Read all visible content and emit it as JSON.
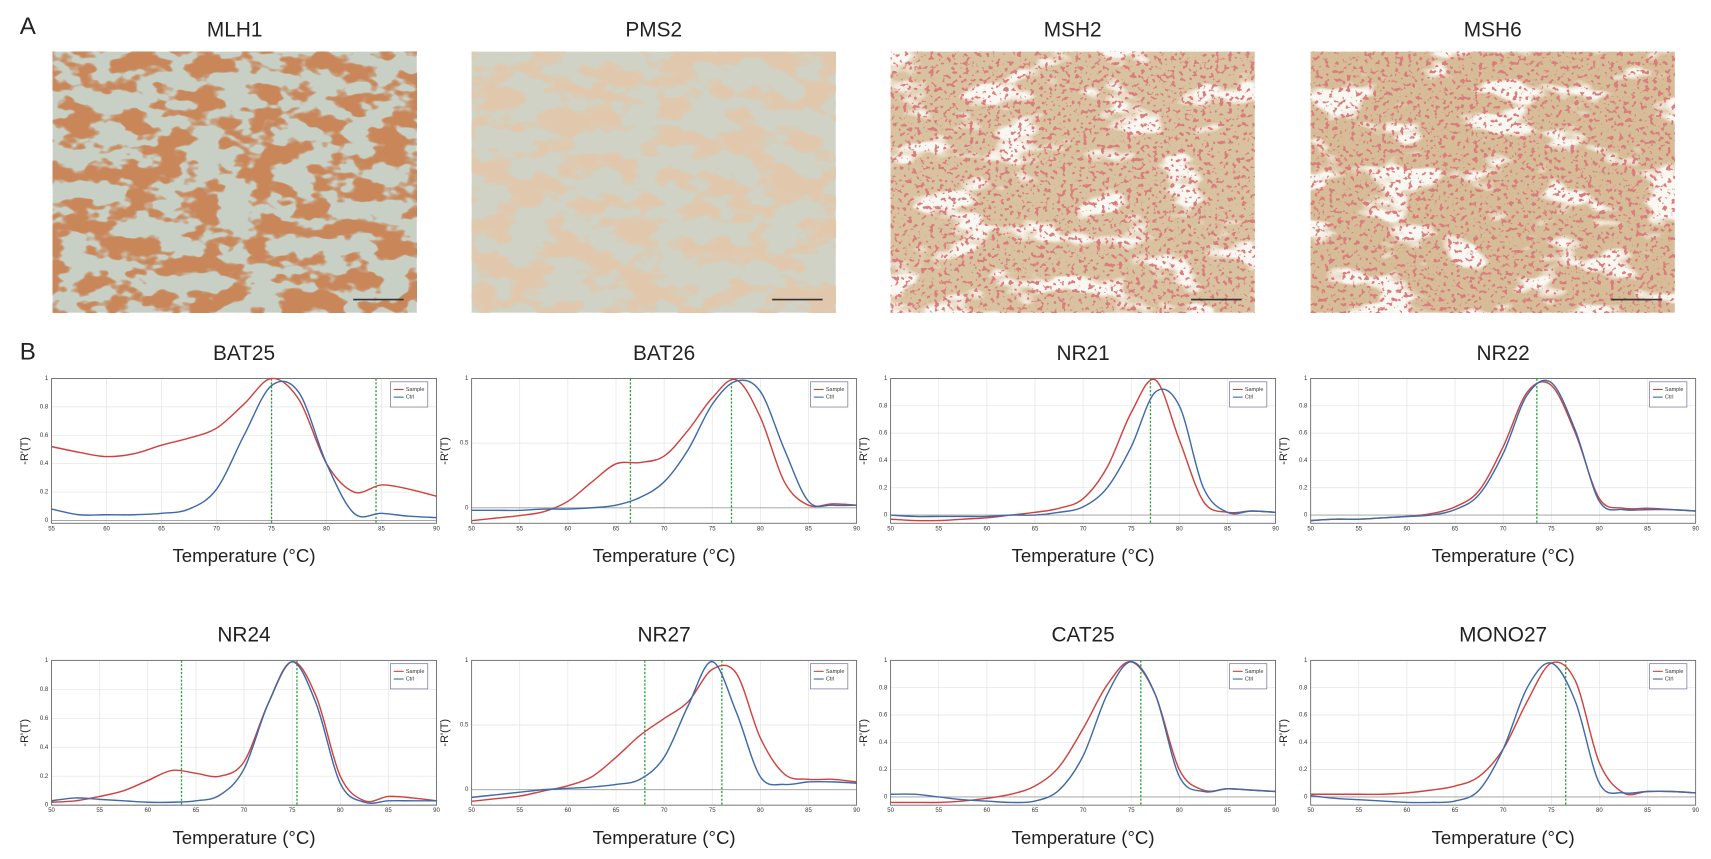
{
  "figure": {
    "panel_a": {
      "label": "A",
      "images": [
        {
          "title": "MLH1"
        },
        {
          "title": "PMS2"
        },
        {
          "title": "MSH2"
        },
        {
          "title": "MSH6"
        }
      ]
    },
    "panel_b": {
      "label": "B"
    }
  },
  "chart_data": [
    {
      "type": "line",
      "title": "BAT25",
      "x_label": "Temperature (°C)",
      "y_label": "-R'(T)",
      "grid": true,
      "legend": "upper right",
      "vline_color": "#2e9e3a",
      "x": [
        55,
        57.5,
        60,
        62.5,
        65,
        67.5,
        70,
        72.5,
        75,
        77.5,
        80,
        82.5,
        85,
        87.5,
        90
      ],
      "xlim": [
        55,
        90
      ],
      "xticks": [
        55,
        60,
        65,
        70,
        75,
        80,
        85,
        90
      ],
      "ylim": [
        -0.02,
        1
      ],
      "yticks": [
        0,
        0.2,
        0.4,
        0.6,
        0.8,
        1
      ],
      "vlines": [
        75,
        84.5
      ],
      "series": [
        {
          "name": "Sample",
          "color": "#d0413e",
          "values": [
            0.52,
            0.48,
            0.45,
            0.47,
            0.53,
            0.58,
            0.65,
            0.82,
            1.0,
            0.85,
            0.4,
            0.2,
            0.25,
            0.22,
            0.17
          ]
        },
        {
          "name": "Ctrl",
          "color": "#3d6aa8",
          "values": [
            0.08,
            0.04,
            0.04,
            0.04,
            0.05,
            0.08,
            0.22,
            0.6,
            0.95,
            0.9,
            0.4,
            0.05,
            0.05,
            0.03,
            0.02
          ]
        }
      ]
    },
    {
      "type": "line",
      "title": "BAT26",
      "x_label": "Temperature (°C)",
      "y_label": "-R'(T)",
      "grid": true,
      "legend": "upper right",
      "vline_color": "#2e9e3a",
      "x": [
        50,
        52.5,
        55,
        57.5,
        60,
        62.5,
        65,
        67.5,
        70,
        72.5,
        75,
        77.5,
        80,
        82.5,
        85,
        87.5,
        90
      ],
      "xlim": [
        50,
        90
      ],
      "xticks": [
        50,
        55,
        60,
        65,
        70,
        75,
        80,
        85,
        90
      ],
      "ylim": [
        -0.12,
        1
      ],
      "yticks": [
        0,
        0.5,
        1
      ],
      "vlines": [
        66.5,
        77
      ],
      "series": [
        {
          "name": "Sample",
          "color": "#d0413e",
          "values": [
            -0.1,
            -0.08,
            -0.06,
            -0.03,
            0.05,
            0.2,
            0.34,
            0.35,
            0.4,
            0.6,
            0.85,
            0.99,
            0.7,
            0.2,
            0.02,
            0.03,
            0.02
          ]
        },
        {
          "name": "Ctrl",
          "color": "#3d6aa8",
          "values": [
            -0.02,
            -0.02,
            -0.02,
            -0.01,
            -0.01,
            0.0,
            0.02,
            0.08,
            0.2,
            0.45,
            0.8,
            0.98,
            0.9,
            0.45,
            0.05,
            0.02,
            0.02
          ]
        }
      ]
    },
    {
      "type": "line",
      "title": "NR21",
      "x_label": "Temperature (°C)",
      "y_label": "-R'(T)",
      "grid": true,
      "legend": "upper right",
      "vline_color": "#2e9e3a",
      "x": [
        50,
        52.5,
        55,
        57.5,
        60,
        62.5,
        65,
        67.5,
        70,
        72.5,
        75,
        77.5,
        80,
        82.5,
        85,
        87.5,
        90
      ],
      "xlim": [
        50,
        90
      ],
      "xticks": [
        50,
        55,
        60,
        65,
        70,
        75,
        80,
        85,
        90
      ],
      "ylim": [
        -0.06,
        1
      ],
      "yticks": [
        0,
        0.2,
        0.4,
        0.6,
        0.8,
        1
      ],
      "vlines": [
        77
      ],
      "series": [
        {
          "name": "Sample",
          "color": "#d0413e",
          "values": [
            -0.03,
            -0.04,
            -0.04,
            -0.03,
            -0.02,
            0.0,
            0.02,
            0.05,
            0.12,
            0.35,
            0.75,
            0.99,
            0.55,
            0.1,
            0.02,
            0.03,
            0.02
          ]
        },
        {
          "name": "Ctrl",
          "color": "#3d6aa8",
          "values": [
            0.0,
            -0.01,
            -0.01,
            -0.01,
            -0.01,
            0.0,
            0.0,
            0.02,
            0.06,
            0.2,
            0.5,
            0.9,
            0.8,
            0.2,
            0.02,
            0.03,
            0.02
          ]
        }
      ]
    },
    {
      "type": "line",
      "title": "NR22",
      "x_label": "Temperature (°C)",
      "y_label": "-R'(T)",
      "grid": true,
      "legend": "upper right",
      "vline_color": "#2e9e3a",
      "x": [
        50,
        52.5,
        55,
        57.5,
        60,
        62.5,
        65,
        67.5,
        70,
        72.5,
        75,
        77.5,
        80,
        82.5,
        85,
        87.5,
        90
      ],
      "xlim": [
        50,
        90
      ],
      "xticks": [
        50,
        55,
        60,
        65,
        70,
        75,
        80,
        85,
        90
      ],
      "ylim": [
        -0.06,
        1
      ],
      "yticks": [
        0,
        0.2,
        0.4,
        0.6,
        0.8,
        1
      ],
      "vlines": [
        73.5
      ],
      "series": [
        {
          "name": "Sample",
          "color": "#d0413e",
          "values": [
            -0.04,
            -0.03,
            -0.03,
            -0.02,
            -0.01,
            0.01,
            0.06,
            0.18,
            0.5,
            0.9,
            0.95,
            0.6,
            0.12,
            0.05,
            0.05,
            0.04,
            0.03
          ]
        },
        {
          "name": "Ctrl",
          "color": "#3d6aa8",
          "values": [
            -0.04,
            -0.03,
            -0.03,
            -0.02,
            -0.01,
            0.0,
            0.04,
            0.15,
            0.45,
            0.88,
            0.97,
            0.62,
            0.1,
            0.04,
            0.04,
            0.04,
            0.03
          ]
        }
      ]
    },
    {
      "type": "line",
      "title": "NR24",
      "x_label": "Temperature (°C)",
      "y_label": "-R'(T)",
      "grid": true,
      "legend": "upper right",
      "vline_color": "#2e9e3a",
      "x": [
        50,
        52.5,
        55,
        57.5,
        60,
        62.5,
        65,
        67.5,
        70,
        72.5,
        75,
        77.5,
        80,
        82.5,
        85,
        87.5,
        90
      ],
      "xlim": [
        50,
        90
      ],
      "xticks": [
        50,
        55,
        60,
        65,
        70,
        75,
        80,
        85,
        90
      ],
      "ylim": [
        0,
        1
      ],
      "yticks": [
        0,
        0.2,
        0.4,
        0.6,
        0.8,
        1
      ],
      "vlines": [
        63.5,
        75.5
      ],
      "series": [
        {
          "name": "Sample",
          "color": "#d0413e",
          "values": [
            0.02,
            0.03,
            0.06,
            0.1,
            0.17,
            0.24,
            0.22,
            0.2,
            0.3,
            0.7,
            0.99,
            0.75,
            0.2,
            0.03,
            0.06,
            0.05,
            0.03
          ]
        },
        {
          "name": "Ctrl",
          "color": "#3d6aa8",
          "values": [
            0.03,
            0.05,
            0.04,
            0.03,
            0.02,
            0.02,
            0.03,
            0.07,
            0.25,
            0.7,
            0.99,
            0.7,
            0.15,
            0.02,
            0.03,
            0.03,
            0.03
          ]
        }
      ]
    },
    {
      "type": "line",
      "title": "NR27",
      "x_label": "Temperature (°C)",
      "y_label": "-R'(T)",
      "grid": true,
      "legend": "upper right",
      "vline_color": "#2e9e3a",
      "x": [
        50,
        52.5,
        55,
        57.5,
        60,
        62.5,
        65,
        67.5,
        70,
        72.5,
        75,
        77.5,
        80,
        82.5,
        85,
        87.5,
        90
      ],
      "xlim": [
        50,
        90
      ],
      "xticks": [
        50,
        55,
        60,
        65,
        70,
        75,
        80,
        85,
        90
      ],
      "ylim": [
        -0.12,
        1
      ],
      "yticks": [
        0,
        0.5,
        1
      ],
      "vlines": [
        68,
        76
      ],
      "series": [
        {
          "name": "Sample",
          "color": "#d0413e",
          "values": [
            -0.09,
            -0.07,
            -0.05,
            -0.01,
            0.03,
            0.1,
            0.25,
            0.42,
            0.55,
            0.68,
            0.93,
            0.9,
            0.4,
            0.12,
            0.08,
            0.08,
            0.06
          ]
        },
        {
          "name": "Ctrl",
          "color": "#3d6aa8",
          "values": [
            -0.06,
            -0.04,
            -0.02,
            0.0,
            0.01,
            0.02,
            0.04,
            0.08,
            0.25,
            0.65,
            0.99,
            0.6,
            0.1,
            0.04,
            0.06,
            0.06,
            0.05
          ]
        }
      ]
    },
    {
      "type": "line",
      "title": "CAT25",
      "x_label": "Temperature (°C)",
      "y_label": "-R'(T)",
      "grid": true,
      "legend": "upper right",
      "vline_color": "#2e9e3a",
      "x": [
        50,
        52.5,
        55,
        57.5,
        60,
        62.5,
        65,
        67.5,
        70,
        72.5,
        75,
        77.5,
        80,
        82.5,
        85,
        87.5,
        90
      ],
      "xlim": [
        50,
        90
      ],
      "xticks": [
        50,
        55,
        60,
        65,
        70,
        75,
        80,
        85,
        90
      ],
      "ylim": [
        -0.06,
        1
      ],
      "yticks": [
        0,
        0.2,
        0.4,
        0.6,
        0.8,
        1
      ],
      "vlines": [
        76
      ],
      "series": [
        {
          "name": "Sample",
          "color": "#d0413e",
          "values": [
            -0.04,
            -0.04,
            -0.04,
            -0.03,
            -0.01,
            0.02,
            0.08,
            0.22,
            0.5,
            0.82,
            0.99,
            0.75,
            0.2,
            0.05,
            0.06,
            0.05,
            0.04
          ]
        },
        {
          "name": "Ctrl",
          "color": "#3d6aa8",
          "values": [
            0.02,
            0.02,
            0.0,
            -0.02,
            -0.03,
            -0.04,
            -0.03,
            0.05,
            0.3,
            0.75,
            0.99,
            0.75,
            0.15,
            0.04,
            0.06,
            0.05,
            0.04
          ]
        }
      ]
    },
    {
      "type": "line",
      "title": "MONO27",
      "x_label": "Temperature (°C)",
      "y_label": "-R'(T)",
      "grid": true,
      "legend": "upper right",
      "vline_color": "#2e9e3a",
      "x": [
        50,
        52.5,
        55,
        57.5,
        60,
        62.5,
        65,
        67.5,
        70,
        72.5,
        75,
        77.5,
        80,
        82.5,
        85,
        87.5,
        90
      ],
      "xlim": [
        50,
        90
      ],
      "xticks": [
        50,
        55,
        60,
        65,
        70,
        75,
        80,
        85,
        90
      ],
      "ylim": [
        -0.06,
        1
      ],
      "yticks": [
        0,
        0.2,
        0.4,
        0.6,
        0.8,
        1
      ],
      "vlines": [
        76.5
      ],
      "series": [
        {
          "name": "Sample",
          "color": "#d0413e",
          "values": [
            0.02,
            0.02,
            0.02,
            0.02,
            0.03,
            0.05,
            0.08,
            0.15,
            0.35,
            0.7,
            0.98,
            0.85,
            0.25,
            0.03,
            0.04,
            0.04,
            0.03
          ]
        },
        {
          "name": "Ctrl",
          "color": "#3d6aa8",
          "values": [
            0.01,
            -0.01,
            -0.02,
            -0.03,
            -0.04,
            -0.04,
            -0.03,
            0.05,
            0.35,
            0.8,
            0.98,
            0.7,
            0.1,
            0.03,
            0.04,
            0.04,
            0.03
          ]
        }
      ]
    }
  ]
}
